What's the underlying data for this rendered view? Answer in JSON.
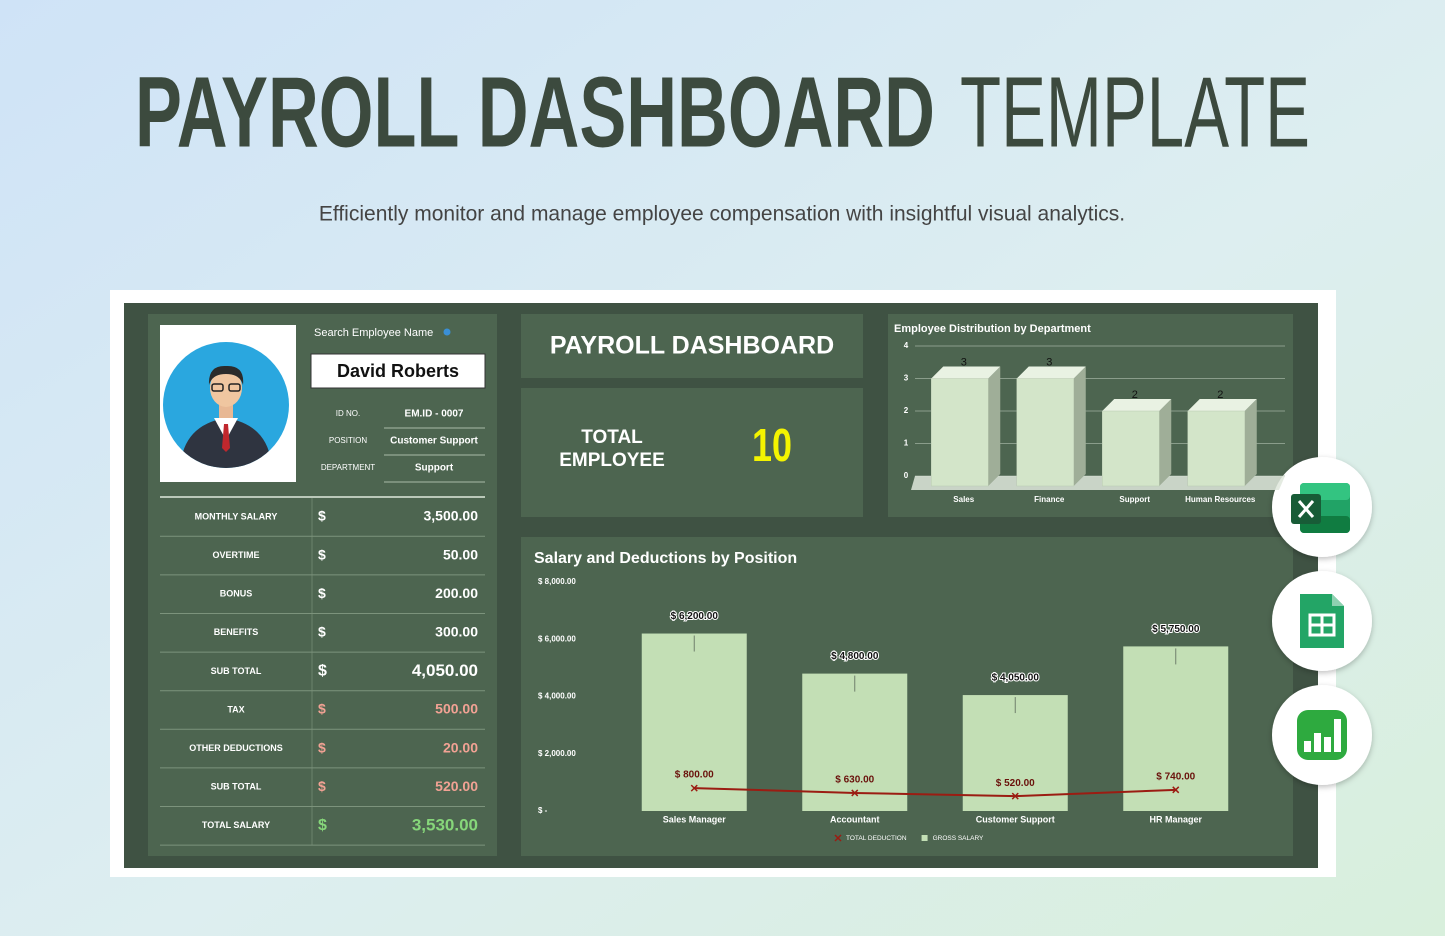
{
  "header": {
    "title_bold": "PAYROLL DASHBOARD",
    "title_light": "TEMPLATE",
    "subtitle": "Efficiently monitor and manage employee compensation with insightful visual analytics."
  },
  "employee": {
    "search_label": "Search Employee Name",
    "name": "David Roberts",
    "fields": [
      {
        "label": "ID NO.",
        "value": "EM.ID - 0007"
      },
      {
        "label": "POSITION",
        "value": "Customer Support"
      },
      {
        "label": "DEPARTMENT",
        "value": "Support"
      }
    ]
  },
  "salary_table": {
    "rows": [
      {
        "label": "MONTHLY SALARY",
        "currency": "$",
        "amount": "3,500.00",
        "color": "#ffffff"
      },
      {
        "label": "OVERTIME",
        "currency": "$",
        "amount": "50.00",
        "color": "#ffffff"
      },
      {
        "label": "BONUS",
        "currency": "$",
        "amount": "200.00",
        "color": "#ffffff"
      },
      {
        "label": "BENEFITS",
        "currency": "$",
        "amount": "300.00",
        "color": "#ffffff"
      },
      {
        "label": "SUB TOTAL",
        "currency": "$",
        "amount": "4,050.00",
        "color": "#ffffff"
      },
      {
        "label": "TAX",
        "currency": "$",
        "amount": "500.00",
        "color": "#f2a294"
      },
      {
        "label": "OTHER DEDUCTIONS",
        "currency": "$",
        "amount": "20.00",
        "color": "#f2a294"
      },
      {
        "label": "SUB TOTAL",
        "currency": "$",
        "amount": "520.00",
        "color": "#f2a294"
      },
      {
        "label": "TOTAL SALARY",
        "currency": "$",
        "amount": "3,530.00",
        "color": "#86d67a"
      }
    ]
  },
  "dashboard": {
    "title": "PAYROLL DASHBOARD",
    "total_label": "TOTAL EMPLOYEE",
    "total_value": 10
  },
  "chart_data": [
    {
      "type": "bar3d",
      "title": "Employee Distribution by Department",
      "categories": [
        "Sales",
        "Finance",
        "Support",
        "Human Resources"
      ],
      "values": [
        3,
        3,
        2,
        2
      ],
      "color": "#d3e5c9",
      "ylim": [
        0,
        4
      ],
      "yticks": [
        0,
        1,
        2,
        3,
        4
      ],
      "grid": true
    },
    {
      "type": "bar_line",
      "title": "Salary and Deductions by Position",
      "categories": [
        "Sales Manager",
        "Accountant",
        "Customer Support",
        "HR Manager"
      ],
      "series": [
        {
          "name": "TOTAL DEDUCTION",
          "type": "line",
          "color": "#9b1c12",
          "values": [
            800,
            630,
            520,
            740
          ],
          "value_labels": [
            "$ 800.00",
            "$ 630.00",
            "$ 520.00",
            "$ 740.00"
          ]
        },
        {
          "name": "GROSS SALARY",
          "type": "bar",
          "color": "#c3dfb5",
          "values": [
            6200,
            4800,
            4050,
            5750
          ],
          "value_labels": [
            "$ 6,200.00",
            "$ 4,800.00",
            "$ 4,050.00",
            "$ 5,750.00"
          ]
        }
      ],
      "ylim": [
        0,
        8000
      ],
      "yticks": [
        {
          "value": 0,
          "label": "$ -"
        },
        {
          "value": 2000,
          "label": "$ 2,000.00"
        },
        {
          "value": 4000,
          "label": "$ 4,000.00"
        },
        {
          "value": 6000,
          "label": "$ 6,000.00"
        },
        {
          "value": 8000,
          "label": "$ 8,000.00"
        }
      ],
      "grid": false
    }
  ]
}
